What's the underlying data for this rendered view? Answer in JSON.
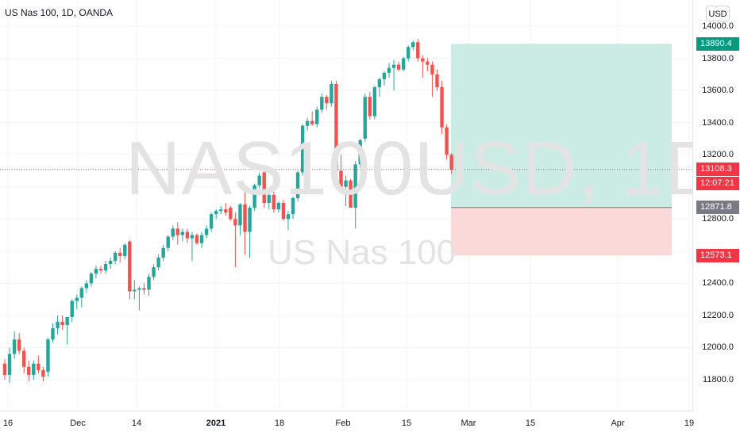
{
  "legend": {
    "title": "US Nas 100, 1D, OANDA"
  },
  "watermark": {
    "symbol": "NAS100USD, 1D",
    "description": "US Nas 100"
  },
  "currency_button": "USD",
  "price_axis": {
    "ticks": [
      "14000.0",
      "13800.0",
      "13600.0",
      "13400.0",
      "13200.0",
      "12800.0",
      "12400.0",
      "12200.0",
      "12000.0",
      "11800.0"
    ],
    "tick_values": [
      14000,
      13800,
      13600,
      13400,
      13200,
      12800,
      12400,
      12200,
      12000,
      11800
    ]
  },
  "price_tags": {
    "target": {
      "label": "13890.4",
      "value": 13890.4,
      "color": "#089981"
    },
    "last": {
      "label": "13108.3",
      "value": 13108.3,
      "color": "#f23645"
    },
    "countdown": {
      "label": "12:07:21",
      "color": "#f23645"
    },
    "entry": {
      "label": "12871.8",
      "value": 12871.8,
      "color": "#787b86"
    },
    "stop": {
      "label": "12573.1",
      "value": 12573.1,
      "color": "#f23645"
    }
  },
  "time_axis": {
    "labels": [
      {
        "text": "16",
        "bold": false
      },
      {
        "text": "Dec",
        "bold": false
      },
      {
        "text": "14",
        "bold": false
      },
      {
        "text": "2021",
        "bold": true
      },
      {
        "text": "18",
        "bold": false
      },
      {
        "text": "Feb",
        "bold": false
      },
      {
        "text": "15",
        "bold": false
      },
      {
        "text": "Mar",
        "bold": false
      },
      {
        "text": "15",
        "bold": false
      },
      {
        "text": "Apr",
        "bold": false
      },
      {
        "text": "19",
        "bold": false
      }
    ]
  },
  "colors": {
    "up": "#26a69a",
    "down": "#ef5350",
    "profit_zone": "#cbebe5",
    "loss_zone": "#fcd9d9",
    "grid": "#f0f3fa"
  },
  "chart_data": {
    "type": "candlestick",
    "ylim": [
      11600,
      14100
    ],
    "position": {
      "entry": 12871.8,
      "target": 13890.4,
      "stop": 12573.1
    },
    "candles": [
      [
        11900,
        11930,
        11800,
        11830
      ],
      [
        11830,
        12000,
        11780,
        11960
      ],
      [
        11960,
        12100,
        11930,
        12050
      ],
      [
        12050,
        12090,
        11960,
        11980
      ],
      [
        11980,
        12000,
        11840,
        11880
      ],
      [
        11880,
        11920,
        11790,
        11830
      ],
      [
        11830,
        11920,
        11800,
        11900
      ],
      [
        11900,
        11950,
        11840,
        11860
      ],
      [
        11860,
        11880,
        11790,
        11820
      ],
      [
        11850,
        12060,
        11820,
        12050
      ],
      [
        12050,
        12150,
        12030,
        12120
      ],
      [
        12120,
        12200,
        12080,
        12160
      ],
      [
        12160,
        12200,
        12110,
        12140
      ],
      [
        12140,
        12190,
        12020,
        12190
      ],
      [
        12190,
        12300,
        12160,
        12290
      ],
      [
        12290,
        12330,
        12240,
        12310
      ],
      [
        12310,
        12380,
        12250,
        12370
      ],
      [
        12370,
        12420,
        12340,
        12400
      ],
      [
        12400,
        12470,
        12380,
        12460
      ],
      [
        12460,
        12510,
        12430,
        12490
      ],
      [
        12490,
        12510,
        12460,
        12480
      ],
      [
        12480,
        12540,
        12460,
        12520
      ],
      [
        12520,
        12560,
        12490,
        12540
      ],
      [
        12540,
        12600,
        12520,
        12590
      ],
      [
        12590,
        12620,
        12530,
        12570
      ],
      [
        12570,
        12650,
        12550,
        12640
      ],
      [
        12660,
        12670,
        12300,
        12350
      ],
      [
        12350,
        12420,
        12300,
        12360
      ],
      [
        12360,
        12380,
        12230,
        12370
      ],
      [
        12370,
        12400,
        12330,
        12360
      ],
      [
        12360,
        12460,
        12320,
        12440
      ],
      [
        12440,
        12520,
        12420,
        12500
      ],
      [
        12500,
        12580,
        12480,
        12560
      ],
      [
        12560,
        12640,
        12540,
        12620
      ],
      [
        12620,
        12700,
        12600,
        12690
      ],
      [
        12690,
        12760,
        12670,
        12740
      ],
      [
        12740,
        12780,
        12640,
        12700
      ],
      [
        12700,
        12740,
        12660,
        12720
      ],
      [
        12720,
        12740,
        12650,
        12680
      ],
      [
        12680,
        12720,
        12540,
        12700
      ],
      [
        12700,
        12710,
        12640,
        12650
      ],
      [
        12650,
        12720,
        12620,
        12700
      ],
      [
        12700,
        12760,
        12680,
        12740
      ],
      [
        12740,
        12840,
        12720,
        12830
      ],
      [
        12830,
        12860,
        12800,
        12850
      ],
      [
        12850,
        12880,
        12830,
        12860
      ],
      [
        12860,
        12900,
        12820,
        12840
      ],
      [
        12870,
        12880,
        12790,
        12800
      ],
      [
        12800,
        12840,
        12500,
        12760
      ],
      [
        12760,
        12900,
        12700,
        12890
      ],
      [
        12890,
        12970,
        12580,
        12720
      ],
      [
        12720,
        12880,
        12560,
        12870
      ],
      [
        12870,
        13020,
        12850,
        13010
      ],
      [
        13010,
        13090,
        12990,
        13070
      ],
      [
        13090,
        13100,
        12870,
        12900
      ],
      [
        12900,
        12960,
        12860,
        12950
      ],
      [
        12950,
        12970,
        12840,
        12860
      ],
      [
        12860,
        12910,
        12840,
        12900
      ],
      [
        12900,
        12920,
        12790,
        12800
      ],
      [
        12800,
        12850,
        12730,
        12830
      ],
      [
        12830,
        12940,
        12800,
        12930
      ],
      [
        12930,
        13100,
        12910,
        13090
      ],
      [
        13090,
        13390,
        13070,
        13380
      ],
      [
        13380,
        13430,
        13350,
        13410
      ],
      [
        13410,
        13470,
        13380,
        13390
      ],
      [
        13390,
        13500,
        13370,
        13480
      ],
      [
        13480,
        13580,
        13460,
        13560
      ],
      [
        13560,
        13570,
        13480,
        13520
      ],
      [
        13520,
        13660,
        13500,
        13640
      ],
      [
        13640,
        13660,
        13100,
        13100
      ],
      [
        13100,
        13200,
        12970,
        13000
      ],
      [
        13000,
        13070,
        12880,
        13040
      ],
      [
        13040,
        13050,
        12870,
        12870
      ],
      [
        12870,
        13160,
        12740,
        13140
      ],
      [
        13140,
        13300,
        13120,
        13290
      ],
      [
        13300,
        13580,
        13280,
        13560
      ],
      [
        13560,
        13590,
        13420,
        13440
      ],
      [
        13440,
        13630,
        13420,
        13620
      ],
      [
        13620,
        13680,
        13560,
        13670
      ],
      [
        13670,
        13720,
        13630,
        13710
      ],
      [
        13710,
        13770,
        13680,
        13740
      ],
      [
        13740,
        13790,
        13600,
        13760
      ],
      [
        13760,
        13780,
        13720,
        13730
      ],
      [
        13730,
        13810,
        13720,
        13800
      ],
      [
        13800,
        13880,
        13780,
        13870
      ],
      [
        13870,
        13910,
        13850,
        13900
      ],
      [
        13900,
        13920,
        13780,
        13800
      ],
      [
        13800,
        13820,
        13680,
        13780
      ],
      [
        13780,
        13800,
        13720,
        13760
      ],
      [
        13760,
        13780,
        13560,
        13700
      ],
      [
        13700,
        13730,
        13600,
        13620
      ],
      [
        13620,
        13660,
        13330,
        13370
      ],
      [
        13370,
        13390,
        13170,
        13200
      ],
      [
        13200,
        13210,
        13080,
        13108.3
      ]
    ]
  }
}
